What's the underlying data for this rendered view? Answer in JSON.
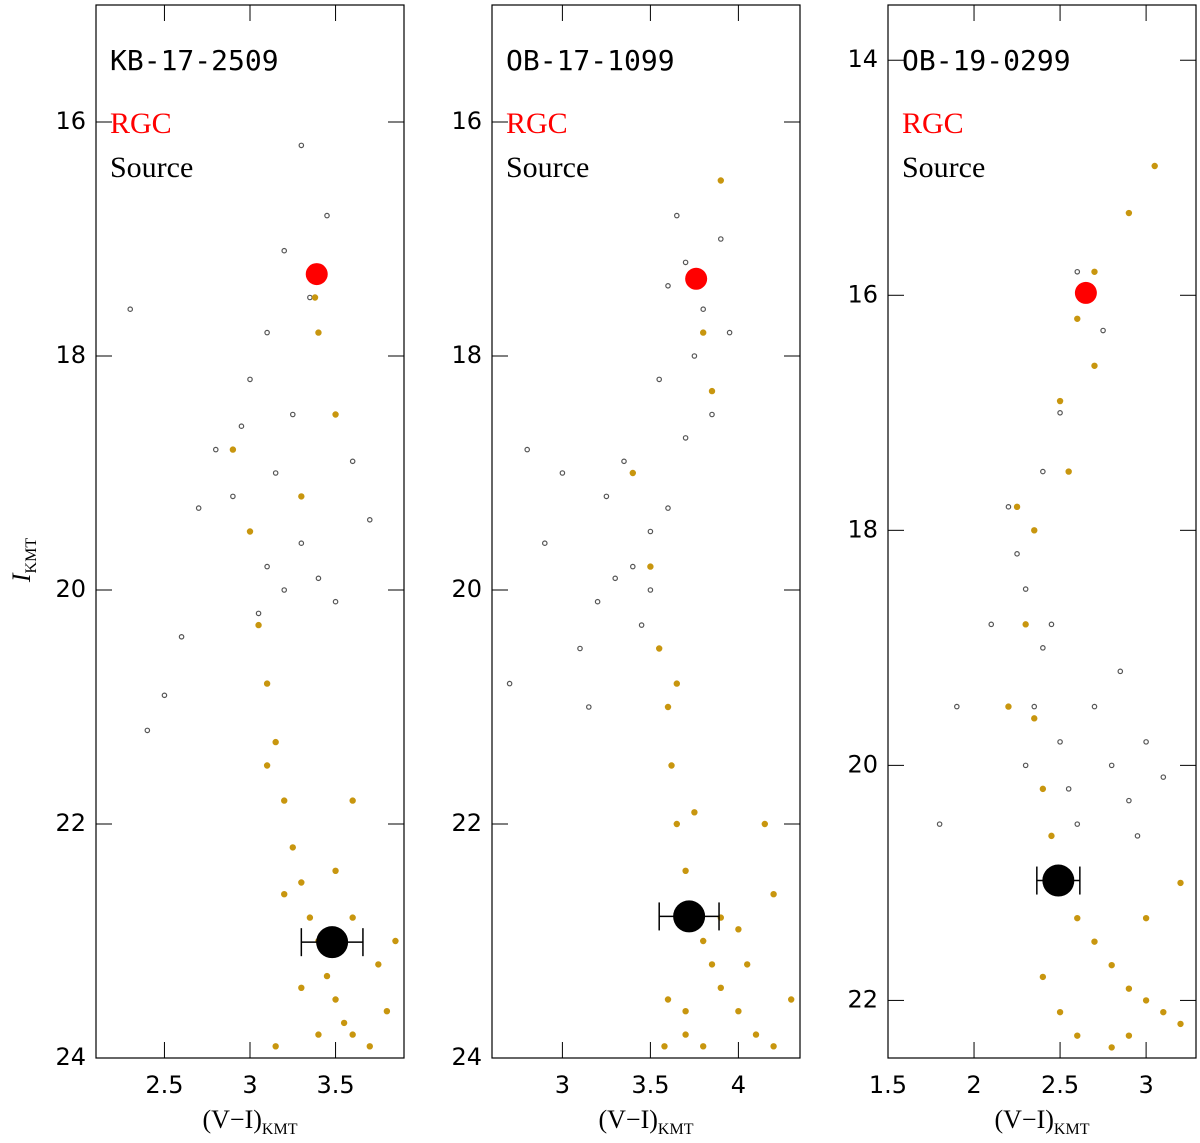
{
  "chart_data": [
    {
      "type": "scatter",
      "title": "KB-17-2509",
      "xlabel": "(V−I)",
      "xlabel_sub": "KMT",
      "ylabel": "I",
      "ylabel_sub": "KMT",
      "xlim": [
        2.1,
        3.9
      ],
      "ylim": [
        24,
        15
      ],
      "xticks": [
        2.5,
        3,
        3.5
      ],
      "yticks": [
        16,
        18,
        20,
        22,
        24
      ],
      "series": [
        {
          "color": "#555555",
          "x": [
            3.0,
            3.1,
            3.2,
            2.9,
            3.3,
            3.05,
            3.15,
            2.8,
            3.4,
            2.7,
            3.25,
            2.6,
            3.5,
            3.35,
            2.5,
            3.6,
            3.0,
            2.4,
            3.45,
            3.1,
            2.3,
            3.7,
            3.2,
            2.95,
            3.3
          ],
          "values": [
            19.5,
            19.8,
            20.0,
            19.2,
            19.6,
            20.2,
            19.0,
            18.8,
            19.9,
            19.3,
            18.5,
            20.4,
            20.1,
            17.5,
            20.9,
            18.9,
            18.2,
            21.2,
            16.8,
            17.8,
            17.6,
            19.4,
            17.1,
            18.6,
            16.2
          ]
        },
        {
          "color": "#c8960f",
          "x": [
            3.05,
            3.1,
            3.15,
            3.2,
            3.25,
            3.3,
            3.35,
            3.4,
            3.45,
            3.5,
            3.55,
            3.6,
            3.7,
            3.8,
            3.1,
            3.2,
            3.3,
            3.4,
            3.5,
            3.6,
            3.75,
            3.85,
            3.0,
            3.4,
            3.38,
            3.5,
            2.9,
            3.6,
            3.3,
            3.15
          ],
          "values": [
            20.3,
            20.8,
            21.3,
            21.8,
            22.2,
            22.5,
            22.8,
            23.0,
            23.3,
            23.5,
            23.7,
            23.8,
            23.9,
            23.6,
            21.5,
            22.6,
            23.4,
            23.8,
            22.4,
            22.8,
            23.2,
            23.0,
            19.5,
            17.8,
            17.5,
            18.5,
            18.8,
            21.8,
            19.2,
            23.9
          ]
        },
        {
          "name": "RGC",
          "color": "#ff0000",
          "x": [
            3.39
          ],
          "values": [
            17.3
          ]
        },
        {
          "name": "Source",
          "color": "#000000",
          "x": [
            3.48
          ],
          "values": [
            23.01
          ],
          "xerr": [
            0.18
          ]
        }
      ]
    },
    {
      "type": "scatter",
      "title": "OB-17-1099",
      "xlabel": "(V−I)",
      "xlabel_sub": "KMT",
      "xlim": [
        2.6,
        4.35
      ],
      "ylim": [
        24,
        15
      ],
      "xticks": [
        3,
        3.5,
        4
      ],
      "yticks": [
        16,
        18,
        20,
        22,
        24
      ],
      "series": [
        {
          "color": "#555555",
          "x": [
            3.4,
            3.5,
            3.3,
            3.6,
            3.2,
            3.45,
            3.0,
            2.9,
            3.7,
            3.8,
            3.75,
            3.9,
            3.85,
            3.65,
            2.8,
            3.35,
            3.1,
            3.55,
            2.7,
            3.95,
            3.25,
            3.5,
            3.7,
            3.15,
            3.6
          ],
          "values": [
            19.8,
            19.5,
            19.9,
            19.3,
            20.1,
            20.3,
            19.0,
            19.6,
            17.2,
            17.6,
            18.0,
            17.0,
            18.5,
            16.8,
            18.8,
            18.9,
            20.5,
            18.2,
            20.8,
            17.8,
            19.2,
            20.0,
            18.7,
            21.0,
            17.4
          ]
        },
        {
          "color": "#c8960f",
          "x": [
            3.55,
            3.6,
            3.62,
            3.65,
            3.7,
            3.75,
            3.8,
            3.85,
            3.9,
            4.0,
            4.1,
            4.2,
            4.3,
            3.6,
            3.7,
            3.8,
            3.9,
            4.0,
            3.65,
            3.75,
            4.05,
            4.2,
            3.5,
            3.8,
            3.85,
            3.4,
            3.9,
            4.15,
            3.58,
            3.7
          ],
          "values": [
            20.5,
            21.0,
            21.5,
            22.0,
            22.4,
            22.7,
            23.0,
            23.2,
            23.4,
            23.6,
            23.8,
            23.9,
            23.5,
            23.5,
            23.8,
            23.9,
            22.8,
            22.9,
            20.8,
            21.9,
            23.2,
            22.6,
            19.8,
            17.8,
            18.3,
            19.0,
            16.5,
            22.0,
            23.9,
            23.6
          ]
        },
        {
          "name": "RGC",
          "color": "#ff0000",
          "x": [
            3.76
          ],
          "values": [
            17.34
          ]
        },
        {
          "name": "Source",
          "color": "#000000",
          "x": [
            3.72
          ],
          "values": [
            22.79
          ],
          "xerr": [
            0.17
          ]
        }
      ]
    },
    {
      "type": "scatter",
      "title": "OB-19-0299",
      "xlabel": "(V−I)",
      "xlabel_sub": "KMT",
      "xlim": [
        1.5,
        3.29
      ],
      "ylim": [
        22.49,
        13.53
      ],
      "xticks": [
        1.5,
        2,
        2.5,
        3
      ],
      "yticks": [
        14,
        16,
        18,
        20,
        22
      ],
      "series": [
        {
          "color": "#555555",
          "x": [
            2.3,
            2.4,
            2.35,
            2.45,
            2.5,
            2.55,
            2.25,
            2.6,
            2.7,
            2.8,
            2.9,
            3.0,
            2.2,
            2.1,
            1.9,
            2.65,
            2.75,
            2.4,
            2.5,
            2.85,
            3.1,
            2.3,
            2.6,
            1.8,
            2.95
          ],
          "values": [
            18.5,
            19.0,
            19.5,
            18.8,
            19.8,
            20.2,
            18.2,
            20.5,
            19.5,
            20.0,
            20.3,
            19.8,
            17.8,
            18.8,
            19.5,
            16.0,
            16.3,
            17.5,
            17.0,
            19.2,
            20.1,
            20.0,
            15.8,
            20.5,
            20.6
          ]
        },
        {
          "color": "#c8960f",
          "x": [
            2.3,
            2.35,
            2.4,
            2.45,
            2.5,
            2.6,
            2.7,
            2.8,
            2.9,
            3.0,
            3.1,
            3.2,
            2.4,
            2.5,
            2.6,
            2.8,
            3.0,
            3.2,
            2.35,
            2.55,
            2.7,
            2.9,
            3.05,
            2.25,
            2.6,
            2.7,
            2.5,
            2.2,
            2.9,
            2.45
          ],
          "values": [
            18.8,
            19.6,
            20.2,
            20.6,
            21.0,
            21.3,
            21.5,
            21.7,
            21.9,
            22.0,
            22.1,
            22.2,
            21.8,
            22.1,
            22.3,
            22.4,
            21.3,
            21.0,
            18.0,
            17.5,
            16.6,
            15.3,
            14.9,
            17.8,
            16.2,
            15.8,
            16.9,
            19.5,
            22.3,
            20.9
          ]
        },
        {
          "name": "RGC",
          "color": "#ff0000",
          "x": [
            2.65
          ],
          "values": [
            15.98
          ]
        },
        {
          "name": "Source",
          "color": "#000000",
          "x": [
            2.49
          ],
          "values": [
            20.98
          ],
          "xerr": [
            0.125
          ]
        }
      ]
    }
  ]
}
